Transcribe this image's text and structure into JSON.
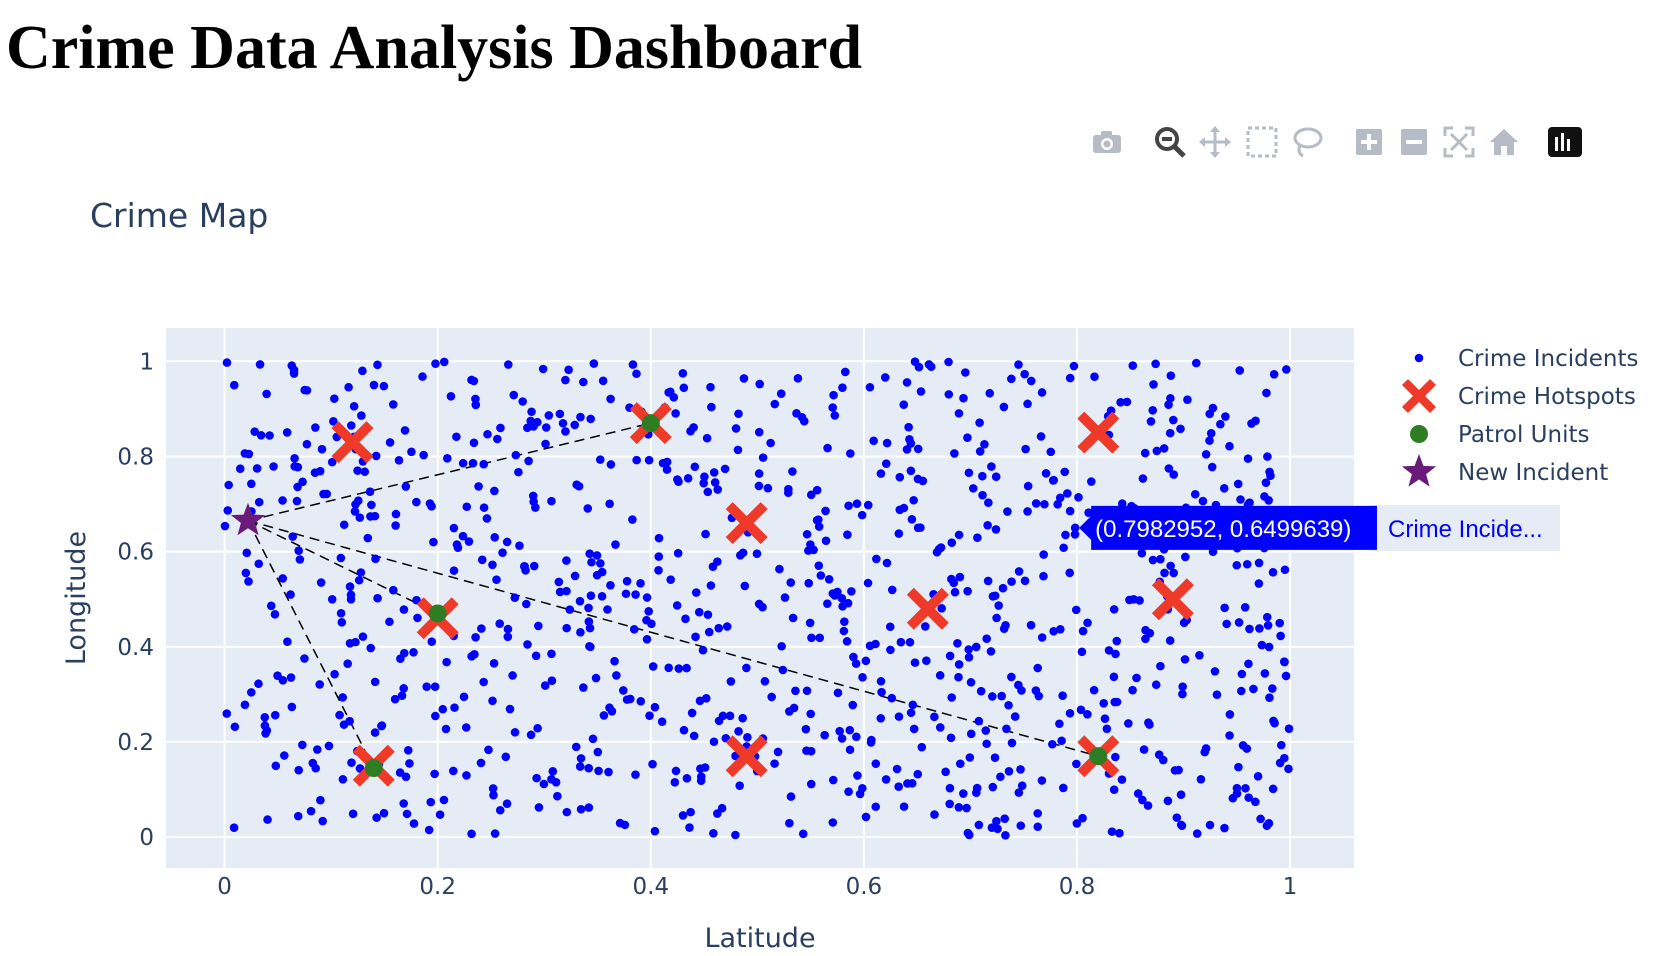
{
  "page": {
    "title": "Crime Data Analysis Dashboard"
  },
  "modebar": {
    "icons": [
      "camera-icon",
      "zoom-icon",
      "pan-icon",
      "box-select-icon",
      "lasso-icon",
      "zoom-in-icon",
      "zoom-out-icon",
      "autoscale-icon",
      "reset-axes-icon",
      "plotly-logo-icon"
    ]
  },
  "chart_data": {
    "type": "scatter",
    "title": "Crime Map",
    "xlabel": "Latitude",
    "ylabel": "Longitude",
    "xlim": [
      -0.055,
      1.06
    ],
    "ylim": [
      -0.065,
      1.07
    ],
    "xticks": [
      "0",
      "0.2",
      "0.4",
      "0.6",
      "0.8",
      "1"
    ],
    "xtick_values": [
      0,
      0.2,
      0.4,
      0.6,
      0.8,
      1
    ],
    "yticks": [
      "0",
      "0.2",
      "0.4",
      "0.6",
      "0.8",
      "1"
    ],
    "ytick_values": [
      0,
      0.2,
      0.4,
      0.6,
      0.8,
      1
    ],
    "grid": true,
    "legend_position": "right",
    "plot_bg": "#e5ecf6",
    "series": [
      {
        "name": "Crime Incidents",
        "marker": "circle",
        "color": "#0000ff",
        "count": 1000,
        "seed": 42
      },
      {
        "name": "Crime Hotspots",
        "marker": "x",
        "color": "#ef3a2a",
        "points": [
          [
            0.12,
            0.83
          ],
          [
            0.4,
            0.87
          ],
          [
            0.82,
            0.85
          ],
          [
            0.49,
            0.66
          ],
          [
            0.2,
            0.46
          ],
          [
            0.66,
            0.48
          ],
          [
            0.89,
            0.5
          ],
          [
            0.14,
            0.15
          ],
          [
            0.49,
            0.17
          ],
          [
            0.82,
            0.17
          ]
        ]
      },
      {
        "name": "Patrol Units",
        "marker": "circle",
        "color": "#2e7d22",
        "points": [
          [
            0.4,
            0.87
          ],
          [
            0.2,
            0.47
          ],
          [
            0.14,
            0.145
          ],
          [
            0.82,
            0.17
          ]
        ]
      },
      {
        "name": "New Incident",
        "marker": "star",
        "color": "#6a1b7a",
        "points": [
          [
            0.022,
            0.665
          ]
        ]
      }
    ],
    "routes": {
      "from": [
        0.022,
        0.665
      ],
      "to": [
        [
          0.4,
          0.87
        ],
        [
          0.2,
          0.47
        ],
        [
          0.14,
          0.145
        ],
        [
          0.82,
          0.17
        ]
      ]
    },
    "hover": {
      "point": [
        0.7982952,
        0.6499639
      ],
      "text": "(0.7982952, 0.6499639)",
      "trace": "Crime Incide..."
    }
  }
}
